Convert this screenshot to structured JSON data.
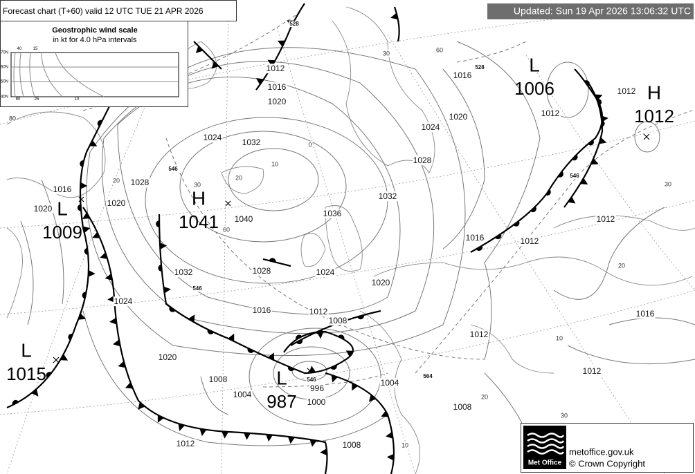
{
  "header": {
    "title": "Forecast chart (T+60) valid 12 UTC TUE 21  APR 2026",
    "updated": "Updated: Sun 19 Apr 2026 13:06:32 UTC"
  },
  "wind_scale": {
    "title": "Geostrophic wind scale",
    "subtitle": "in kt for 4.0 hPa intervals",
    "lat_labels": [
      "70N",
      "60N",
      "50N",
      "40N"
    ],
    "top_labels": [
      "40",
      "15"
    ],
    "bottom_labels": [
      "80",
      "25",
      "10"
    ]
  },
  "pressure_centres": [
    {
      "type": "L",
      "value": "1006"
    },
    {
      "type": "H",
      "value": "1012"
    },
    {
      "type": "H",
      "value": "1041"
    },
    {
      "type": "L",
      "value": "1009"
    },
    {
      "type": "L",
      "value": "1015"
    },
    {
      "type": "L",
      "value": "987"
    }
  ],
  "isobar_labels": [
    "1016",
    "1020",
    "1024",
    "1032",
    "1028",
    "1036",
    "1040",
    "1032",
    "1028",
    "1024",
    "1020",
    "1016",
    "1012",
    "1012",
    "1016",
    "1020",
    "1020",
    "1032",
    "1028",
    "1024",
    "1020",
    "1016",
    "1012",
    "1008",
    "1024",
    "1020",
    "1008",
    "1004",
    "996",
    "1000",
    "1004",
    "1008",
    "1012",
    "1012",
    "1012",
    "1016",
    "1016",
    "1012",
    "1008",
    "1012",
    "1012"
  ],
  "thickness_labels": [
    "528",
    "528",
    "546",
    "546",
    "546",
    "564",
    "546"
  ],
  "graticule_labels": [
    "30",
    "60",
    "30",
    "20",
    "10",
    "0",
    "60",
    "30",
    "20",
    "10",
    "20",
    "30",
    "10",
    "80",
    "20"
  ],
  "footer": {
    "logo": "Met Office",
    "site": "metoffice.gov.uk",
    "copyright": "© Crown Copyright"
  }
}
